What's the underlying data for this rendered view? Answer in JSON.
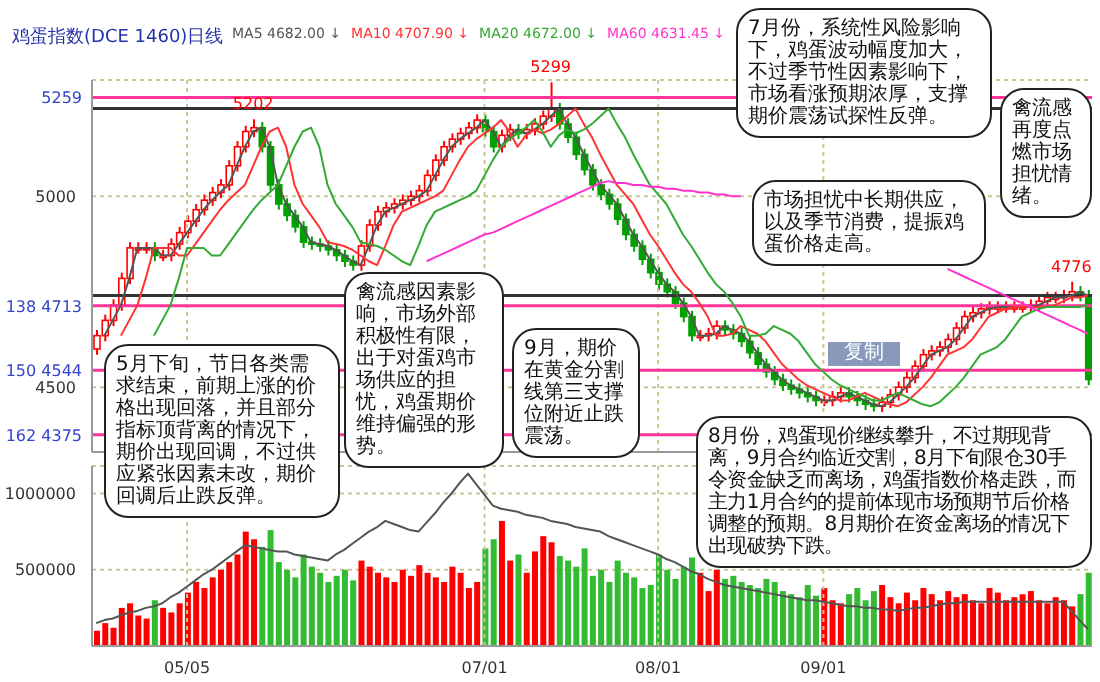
{
  "chart_data": [
    {
      "type": "candlestick",
      "title": "鸡蛋指数(DCE 1460)日线",
      "tick_labels": "y",
      "legend": "top",
      "grid": true,
      "categories": [
        null,
        null,
        null,
        null,
        null,
        null,
        null,
        null,
        null,
        null,
        null,
        null,
        null,
        null,
        null,
        null,
        null,
        null,
        null,
        null,
        null,
        null,
        null,
        null,
        null,
        null,
        null,
        null,
        null,
        null,
        null,
        null,
        null,
        null,
        null,
        null,
        null,
        null,
        null,
        null,
        null,
        null,
        null,
        null,
        null,
        null,
        null,
        null,
        null,
        null,
        null,
        null,
        null,
        null,
        null,
        null,
        null,
        null,
        null,
        null,
        null,
        null,
        null,
        null,
        null,
        null,
        null,
        null,
        null,
        null,
        null,
        null,
        null,
        null,
        null,
        null,
        null,
        null,
        null,
        null,
        null,
        null,
        null,
        null,
        null,
        null,
        null,
        null,
        null,
        null,
        null,
        null,
        null,
        null,
        null,
        null,
        null,
        null,
        null,
        null,
        null,
        null,
        null,
        null,
        null,
        null,
        null,
        null,
        null,
        null,
        null,
        null,
        null,
        null,
        null,
        null,
        null,
        null,
        null,
        null,
        null
      ],
      "ohlc": [
        [
          4600,
          4650,
          4585,
          4635
        ],
        [
          4635,
          4690,
          4620,
          4675
        ],
        [
          4675,
          4730,
          4660,
          4715
        ],
        [
          4715,
          4800,
          4700,
          4785
        ],
        [
          4785,
          4880,
          4770,
          4865
        ],
        [
          4865,
          4880,
          4850,
          4865
        ],
        [
          4865,
          4880,
          4850,
          4865
        ],
        [
          4865,
          4880,
          4830,
          4845
        ],
        [
          4845,
          4860,
          4830,
          4845
        ],
        [
          4845,
          4890,
          4830,
          4875
        ],
        [
          4875,
          4920,
          4860,
          4905
        ],
        [
          4905,
          4950,
          4890,
          4935
        ],
        [
          4935,
          4980,
          4920,
          4965
        ],
        [
          4965,
          5005,
          4950,
          4990
        ],
        [
          4990,
          5025,
          4975,
          5010
        ],
        [
          5010,
          5045,
          4995,
          5030
        ],
        [
          5030,
          5095,
          5015,
          5080
        ],
        [
          5080,
          5145,
          5065,
          5130
        ],
        [
          5130,
          5185,
          5115,
          5170
        ],
        [
          5170,
          5202,
          5155,
          5180
        ],
        [
          5180,
          5195,
          5115,
          5130
        ],
        [
          5130,
          5145,
          5015,
          5030
        ],
        [
          5030,
          5045,
          4965,
          4980
        ],
        [
          4980,
          4995,
          4935,
          4950
        ],
        [
          4950,
          4965,
          4905,
          4920
        ],
        [
          4920,
          4935,
          4865,
          4880
        ],
        [
          4880,
          4895,
          4860,
          4875
        ],
        [
          4875,
          4890,
          4855,
          4870
        ],
        [
          4870,
          4885,
          4845,
          4860
        ],
        [
          4860,
          4875,
          4830,
          4845
        ],
        [
          4845,
          4860,
          4815,
          4830
        ],
        [
          4830,
          4845,
          4805,
          4820
        ],
        [
          4820,
          4885,
          4805,
          4870
        ],
        [
          4870,
          4940,
          4855,
          4925
        ],
        [
          4925,
          4975,
          4910,
          4960
        ],
        [
          4960,
          4985,
          4945,
          4970
        ],
        [
          4970,
          4995,
          4955,
          4980
        ],
        [
          4980,
          5005,
          4965,
          4990
        ],
        [
          4990,
          5015,
          4975,
          5000
        ],
        [
          5000,
          5030,
          4985,
          5015
        ],
        [
          5015,
          5070,
          5000,
          5055
        ],
        [
          5055,
          5110,
          5040,
          5095
        ],
        [
          5095,
          5145,
          5080,
          5130
        ],
        [
          5130,
          5165,
          5115,
          5150
        ],
        [
          5150,
          5180,
          5135,
          5165
        ],
        [
          5165,
          5195,
          5150,
          5180
        ],
        [
          5180,
          5215,
          5165,
          5200
        ],
        [
          5200,
          5215,
          5155,
          5170
        ],
        [
          5170,
          5185,
          5115,
          5130
        ],
        [
          5130,
          5175,
          5115,
          5160
        ],
        [
          5160,
          5190,
          5145,
          5175
        ],
        [
          5175,
          5190,
          5150,
          5165
        ],
        [
          5165,
          5190,
          5150,
          5175
        ],
        [
          5175,
          5205,
          5160,
          5190
        ],
        [
          5190,
          5225,
          5175,
          5210
        ],
        [
          5210,
          5299,
          5195,
          5230
        ],
        [
          5230,
          5245,
          5175,
          5190
        ],
        [
          5190,
          5205,
          5140,
          5155
        ],
        [
          5155,
          5170,
          5095,
          5110
        ],
        [
          5110,
          5125,
          5055,
          5070
        ],
        [
          5070,
          5085,
          5015,
          5030
        ],
        [
          5030,
          5045,
          4990,
          5005
        ],
        [
          5005,
          5020,
          4965,
          4980
        ],
        [
          4980,
          4995,
          4925,
          4940
        ],
        [
          4940,
          4955,
          4885,
          4900
        ],
        [
          4900,
          4915,
          4855,
          4870
        ],
        [
          4870,
          4885,
          4820,
          4835
        ],
        [
          4835,
          4850,
          4785,
          4800
        ],
        [
          4800,
          4815,
          4755,
          4770
        ],
        [
          4770,
          4785,
          4735,
          4750
        ],
        [
          4750,
          4765,
          4705,
          4720
        ],
        [
          4720,
          4735,
          4670,
          4685
        ],
        [
          4685,
          4700,
          4620,
          4635
        ],
        [
          4635,
          4650,
          4620,
          4635
        ],
        [
          4635,
          4655,
          4620,
          4640
        ],
        [
          4640,
          4675,
          4625,
          4660
        ],
        [
          4660,
          4675,
          4635,
          4650
        ],
        [
          4650,
          4665,
          4625,
          4640
        ],
        [
          4640,
          4655,
          4605,
          4620
        ],
        [
          4620,
          4635,
          4575,
          4590
        ],
        [
          4590,
          4605,
          4545,
          4560
        ],
        [
          4560,
          4575,
          4525,
          4540
        ],
        [
          4540,
          4555,
          4505,
          4520
        ],
        [
          4520,
          4535,
          4490,
          4505
        ],
        [
          4505,
          4520,
          4480,
          4495
        ],
        [
          4495,
          4510,
          4470,
          4485
        ],
        [
          4485,
          4500,
          4460,
          4475
        ],
        [
          4475,
          4490,
          4450,
          4465
        ],
        [
          4465,
          4480,
          4450,
          4465
        ],
        [
          4465,
          4490,
          4450,
          4475
        ],
        [
          4475,
          4500,
          4460,
          4485
        ],
        [
          4485,
          4500,
          4460,
          4475
        ],
        [
          4475,
          4490,
          4450,
          4465
        ],
        [
          4465,
          4480,
          4440,
          4455
        ],
        [
          4455,
          4470,
          4436,
          4450
        ],
        [
          4450,
          4475,
          4435,
          4460
        ],
        [
          4460,
          4495,
          4445,
          4480
        ],
        [
          4480,
          4515,
          4465,
          4500
        ],
        [
          4500,
          4540,
          4485,
          4525
        ],
        [
          4525,
          4570,
          4510,
          4555
        ],
        [
          4555,
          4600,
          4540,
          4585
        ],
        [
          4585,
          4610,
          4570,
          4595
        ],
        [
          4595,
          4620,
          4580,
          4605
        ],
        [
          4605,
          4640,
          4590,
          4625
        ],
        [
          4625,
          4670,
          4610,
          4655
        ],
        [
          4655,
          4700,
          4640,
          4685
        ],
        [
          4685,
          4710,
          4670,
          4695
        ],
        [
          4695,
          4720,
          4680,
          4705
        ],
        [
          4705,
          4725,
          4690,
          4710
        ],
        [
          4710,
          4725,
          4695,
          4710
        ],
        [
          4710,
          4725,
          4695,
          4710
        ],
        [
          4710,
          4725,
          4695,
          4710
        ],
        [
          4710,
          4725,
          4695,
          4710
        ],
        [
          4710,
          4730,
          4695,
          4715
        ],
        [
          4715,
          4740,
          4700,
          4725
        ],
        [
          4725,
          4750,
          4710,
          4735
        ],
        [
          4735,
          4750,
          4720,
          4735
        ],
        [
          4735,
          4755,
          4720,
          4740
        ],
        [
          4740,
          4776,
          4725,
          4750
        ],
        [
          4750,
          4765,
          4725,
          4740
        ],
        [
          4740,
          4755,
          4505,
          4520
        ]
      ],
      "series": [
        {
          "name": "MA5 4682.00 ↓",
          "type": "line",
          "color": "#555555",
          "values": [
            null,
            4635,
            4675,
            4715,
            4785,
            4865,
            4865,
            4865,
            4845,
            4845,
            4875,
            4905,
            4935,
            4965,
            4990,
            5010,
            5030,
            5080,
            5130,
            5170,
            5180,
            5130,
            5030,
            4980,
            4950,
            4920,
            4880,
            4875,
            4870,
            4860,
            4845,
            4830,
            4820,
            4870,
            4925,
            4960,
            4970,
            4980,
            4990,
            5000,
            5015,
            5055,
            5095,
            5130,
            5150,
            5165,
            5180,
            5200,
            5170,
            5130,
            5160,
            5175,
            5165,
            5175,
            5190,
            5210,
            5230,
            5190,
            5155,
            5110,
            5070,
            5030,
            5005,
            4980,
            4940,
            4900,
            4870,
            4835,
            4800,
            4770,
            4750,
            4720,
            4685,
            4635,
            4635,
            4640,
            4660,
            4650,
            4640,
            4620,
            4590,
            4560,
            4540,
            4520,
            4505,
            4495,
            4485,
            4475,
            4465,
            4465,
            4475,
            4485,
            4475,
            4465,
            4455,
            4450,
            4460,
            4480,
            4500,
            4525,
            4555,
            4585,
            4595,
            4605,
            4625,
            4655,
            4685,
            4695,
            4705,
            4710,
            4710,
            4710,
            4710,
            4710,
            4715,
            4725,
            4735,
            4735,
            4740,
            4750,
            4740
          ]
        },
        {
          "name": "MA10 4707.90 ↓",
          "type": "line",
          "color": "#ff3333",
          "values": [
            null,
            null,
            null,
            4635,
            4675,
            4715,
            4785,
            4865,
            4865,
            4865,
            4845,
            4845,
            4875,
            4905,
            4935,
            4965,
            4990,
            5010,
            5030,
            5080,
            5130,
            5170,
            5180,
            5130,
            5030,
            4980,
            4950,
            4920,
            4880,
            4875,
            4870,
            4860,
            4845,
            4830,
            4820,
            4870,
            4925,
            4960,
            4970,
            4980,
            4990,
            5000,
            5015,
            5055,
            5095,
            5130,
            5150,
            5165,
            5180,
            5200,
            5170,
            5130,
            5160,
            5175,
            5165,
            5175,
            5190,
            5210,
            5230,
            5190,
            5155,
            5110,
            5070,
            5030,
            5005,
            4980,
            4940,
            4900,
            4870,
            4835,
            4800,
            4770,
            4750,
            4720,
            4685,
            4635,
            4635,
            4640,
            4660,
            4650,
            4640,
            4620,
            4590,
            4560,
            4540,
            4520,
            4505,
            4495,
            4485,
            4475,
            4465,
            4465,
            4475,
            4485,
            4475,
            4465,
            4455,
            4450,
            4460,
            4480,
            4500,
            4525,
            4555,
            4585,
            4595,
            4605,
            4625,
            4655,
            4685,
            4695,
            4705,
            4710,
            4710,
            4710,
            4710,
            4710,
            4715,
            4725,
            4735,
            4735,
            4740
          ]
        },
        {
          "name": "MA20 4672.00 ↓",
          "type": "line",
          "color": "#33aa33",
          "values": [
            null,
            null,
            null,
            null,
            null,
            null,
            null,
            4635,
            4675,
            4715,
            4785,
            4865,
            4865,
            4865,
            4845,
            4845,
            4875,
            4905,
            4935,
            4965,
            4990,
            5010,
            5030,
            5080,
            5130,
            5170,
            5180,
            5130,
            5030,
            4980,
            4950,
            4920,
            4880,
            4875,
            4870,
            4860,
            4845,
            4830,
            4820,
            4870,
            4925,
            4960,
            4970,
            4980,
            4990,
            5000,
            5015,
            5055,
            5095,
            5130,
            5150,
            5165,
            5180,
            5200,
            5170,
            5130,
            5160,
            5175,
            5165,
            5175,
            5190,
            5210,
            5230,
            5190,
            5155,
            5110,
            5070,
            5030,
            5005,
            4980,
            4940,
            4900,
            4870,
            4835,
            4800,
            4770,
            4750,
            4720,
            4685,
            4635,
            4635,
            4640,
            4660,
            4650,
            4640,
            4620,
            4590,
            4560,
            4540,
            4520,
            4505,
            4495,
            4485,
            4475,
            4465,
            4465,
            4475,
            4485,
            4475,
            4465,
            4455,
            4450,
            4460,
            4480,
            4500,
            4525,
            4555,
            4585,
            4595,
            4605,
            4625,
            4655,
            4685,
            4695,
            4705,
            4710,
            4710,
            4710,
            4710,
            4710,
            4715
          ]
        },
        {
          "name": "MA60 4631.45 ↓",
          "type": "line",
          "color": "#ff33cc",
          "values": [
            null,
            null,
            null,
            null,
            null,
            null,
            null,
            null,
            null,
            null,
            null,
            null,
            null,
            null,
            null,
            null,
            null,
            null,
            null,
            null,
            null,
            null,
            null,
            null,
            null,
            null,
            null,
            null,
            null,
            null,
            null,
            null,
            null,
            null,
            null,
            null,
            null,
            null,
            null,
            null,
            4830,
            4840,
            4850,
            4860,
            4870,
            4880,
            4890,
            4900,
            4905,
            4915,
            4925,
            4935,
            4945,
            4955,
            4965,
            4975,
            4985,
            4995,
            5005,
            5015,
            5025,
            5035,
            5040,
            5035,
            5035,
            5030,
            5030,
            5025,
            5025,
            5020,
            5020,
            5015,
            5015,
            5010,
            5010,
            5005,
            5005,
            5000,
            5000,
            null,
            null,
            null,
            null,
            null,
            null,
            null,
            null,
            null,
            null,
            null,
            null,
            null,
            null,
            null,
            null,
            null,
            null,
            null,
            null,
            null,
            null,
            null,
            null,
            4810,
            4800,
            4790,
            4780,
            4770,
            4760,
            4750,
            4740,
            4730,
            4720,
            4710,
            4700,
            4690,
            4680,
            4670,
            4660,
            4650,
            4640
          ]
        }
      ],
      "ylim": [
        4330,
        5305
      ],
      "yticks": [
        5000,
        4500
      ],
      "ref_lines": [
        {
          "axis": "y",
          "value": 5259,
          "label": "5259",
          "color": "#ff3399"
        },
        {
          "axis": "y",
          "value": 5230,
          "label": null,
          "color": "#333333"
        },
        {
          "axis": "y",
          "value": 4740,
          "label": null,
          "color": "#333333"
        },
        {
          "axis": "y",
          "value": 4713,
          "label": "138 4713",
          "color": "#ff3399"
        },
        {
          "axis": "y",
          "value": 4544,
          "label": "150 4544",
          "color": "#ff3399"
        },
        {
          "axis": "y",
          "value": 4375,
          "label": "162 4375",
          "color": "#ff3399"
        }
      ],
      "annotations": [
        "5月下旬，节日各类需求结束，前期上涨的价格出现回落，并且部分指标顶背离的情况下，期价出现回调，不过供应紧张因素未改，期价回调后止跌反弹。",
        "禽流感因素影响，市场外部积极性有限，出于对蛋鸡市场供应的担忧，鸡蛋期价维持偏强的形势。",
        "8月份，鸡蛋现价继续攀升，不过期现背离，9月合约临近交割，8月下旬限仓30手令资金缺乏而离场，鸡蛋指数价格走跌，而主力1月合约的提前体现市场预期节后价格调整的预期。8月期价在资金离场的情况下出现破势下跌。",
        "7月份，系统性风险影响下，鸡蛋波动幅度加大，不过季节性因素影响下，市场看涨预期浓厚，支撑期价震荡试探性反弹。",
        "市场担忧中长期供应，以及季节消费，提振鸡蛋价格走高。",
        "禽流感再度点燃市场担忧情绪。",
        "9月，期价在黄金分割线第三支撑位附近止跌震荡。",
        "复制",
        {
          "text": "5202",
          "y": 5202
        },
        {
          "text": "5299",
          "y": 5299
        },
        {
          "text": "4776",
          "y": 4776
        }
      ]
    },
    {
      "type": "bar",
      "grid": true,
      "legend": false,
      "categories": [
        null,
        null,
        null,
        null,
        null,
        null,
        null,
        null,
        null,
        null,
        null,
        "05/05",
        null,
        null,
        null,
        null,
        null,
        null,
        null,
        null,
        null,
        null,
        null,
        null,
        null,
        null,
        null,
        null,
        null,
        null,
        null,
        null,
        null,
        null,
        null,
        null,
        null,
        null,
        null,
        null,
        null,
        null,
        null,
        null,
        null,
        null,
        null,
        "07/01",
        null,
        null,
        null,
        null,
        null,
        null,
        null,
        null,
        null,
        null,
        null,
        null,
        null,
        null,
        null,
        null,
        null,
        null,
        null,
        null,
        "08/01",
        null,
        null,
        null,
        null,
        null,
        null,
        null,
        null,
        null,
        null,
        null,
        null,
        null,
        null,
        null,
        null,
        null,
        null,
        null,
        "09/01",
        null,
        null,
        null,
        null,
        null,
        null,
        null,
        null,
        null,
        null,
        null,
        null,
        null,
        null,
        null,
        null,
        null,
        null,
        null,
        null,
        null,
        null,
        null,
        null,
        null,
        null,
        null,
        null,
        null,
        null,
        null,
        null
      ],
      "series": [
        {
          "type": "bar",
          "values": [
            100000,
            150000,
            120000,
            250000,
            280000,
            200000,
            180000,
            300000,
            250000,
            220000,
            280000,
            350000,
            420000,
            380000,
            450000,
            500000,
            550000,
            600000,
            750000,
            700000,
            650000,
            760000,
            550000,
            500000,
            450000,
            600000,
            520000,
            480000,
            420000,
            460000,
            500000,
            430000,
            560000,
            520000,
            480000,
            450000,
            420000,
            500000,
            460000,
            530000,
            480000,
            450000,
            420000,
            520000,
            480000,
            380000,
            420000,
            640000,
            700000,
            820000,
            560000,
            600000,
            480000,
            620000,
            720000,
            680000,
            590000,
            560000,
            520000,
            640000,
            460000,
            500000,
            420000,
            560000,
            480000,
            450000,
            380000,
            400000,
            600000,
            500000,
            440000,
            520000,
            580000,
            480000,
            360000,
            500000,
            440000,
            460000,
            420000,
            400000,
            380000,
            440000,
            420000,
            360000,
            340000,
            320000,
            400000,
            330000,
            380000,
            300000,
            280000,
            340000,
            380000,
            300000,
            360000,
            400000,
            320000,
            280000,
            350000,
            300000,
            380000,
            340000,
            300000,
            360000,
            320000,
            340000,
            300000,
            280000,
            380000,
            350000,
            300000,
            320000,
            340000,
            360000,
            300000,
            280000,
            320000,
            300000,
            260000,
            340000,
            480000
          ],
          "colors": [
            "#ff0000",
            "#ff0000",
            "#ff0000",
            "#ff0000",
            "#ff0000",
            "#ff0000",
            "#ff0000",
            "#33bb33",
            "#ff0000",
            "#ff0000",
            "#ff0000",
            "#ff0000",
            "#ff0000",
            "#ff0000",
            "#ff0000",
            "#ff0000",
            "#ff0000",
            "#ff0000",
            "#ff0000",
            "#ff0000",
            "#33bb33",
            "#33bb33",
            "#33bb33",
            "#33bb33",
            "#33bb33",
            "#33bb33",
            "#33bb33",
            "#33bb33",
            "#33bb33",
            "#33bb33",
            "#33bb33",
            "#33bb33",
            "#ff0000",
            "#ff0000",
            "#ff0000",
            "#ff0000",
            "#ff0000",
            "#ff0000",
            "#ff0000",
            "#ff0000",
            "#ff0000",
            "#ff0000",
            "#ff0000",
            "#ff0000",
            "#ff0000",
            "#ff0000",
            "#ff0000",
            "#33bb33",
            "#33bb33",
            "#ff0000",
            "#ff0000",
            "#33bb33",
            "#ff0000",
            "#ff0000",
            "#ff0000",
            "#ff0000",
            "#33bb33",
            "#33bb33",
            "#33bb33",
            "#33bb33",
            "#33bb33",
            "#33bb33",
            "#33bb33",
            "#33bb33",
            "#33bb33",
            "#33bb33",
            "#33bb33",
            "#33bb33",
            "#33bb33",
            "#33bb33",
            "#33bb33",
            "#33bb33",
            "#33bb33",
            "#ff0000",
            "#ff0000",
            "#ff0000",
            "#33bb33",
            "#33bb33",
            "#33bb33",
            "#33bb33",
            "#33bb33",
            "#33bb33",
            "#33bb33",
            "#33bb33",
            "#33bb33",
            "#33bb33",
            "#33bb33",
            "#33bb33",
            "#ff0000",
            "#ff0000",
            "#ff0000",
            "#33bb33",
            "#33bb33",
            "#33bb33",
            "#33bb33",
            "#ff0000",
            "#ff0000",
            "#ff0000",
            "#ff0000",
            "#ff0000",
            "#ff0000",
            "#ff0000",
            "#ff0000",
            "#ff0000",
            "#ff0000",
            "#ff0000",
            "#ff0000",
            "#ff0000",
            "#ff0000",
            "#ff0000",
            "#ff0000",
            "#ff0000",
            "#ff0000",
            "#ff0000",
            "#ff0000",
            "#ff0000",
            "#ff0000",
            "#ff0000",
            "#ff0000",
            "#33bb33",
            "#33bb33"
          ]
        },
        {
          "type": "line",
          "color": "#555555",
          "values": [
            150000,
            170000,
            180000,
            200000,
            220000,
            230000,
            250000,
            260000,
            280000,
            320000,
            350000,
            390000,
            430000,
            470000,
            500000,
            540000,
            580000,
            620000,
            660000,
            650000,
            640000,
            630000,
            620000,
            620000,
            600000,
            590000,
            580000,
            570000,
            560000,
            600000,
            630000,
            670000,
            710000,
            750000,
            780000,
            820000,
            800000,
            780000,
            760000,
            750000,
            810000,
            870000,
            940000,
            1000000,
            1070000,
            1130000,
            1060000,
            990000,
            920000,
            900000,
            890000,
            880000,
            860000,
            850000,
            840000,
            820000,
            810000,
            800000,
            780000,
            770000,
            760000,
            750000,
            720000,
            700000,
            680000,
            660000,
            640000,
            620000,
            600000,
            570000,
            550000,
            520000,
            490000,
            470000,
            440000,
            420000,
            400000,
            390000,
            380000,
            370000,
            360000,
            350000,
            340000,
            330000,
            320000,
            310000,
            300000,
            300000,
            290000,
            280000,
            270000,
            260000,
            260000,
            250000,
            250000,
            240000,
            240000,
            230000,
            240000,
            250000,
            250000,
            260000,
            270000,
            280000,
            280000,
            290000,
            290000,
            290000,
            290000,
            290000,
            290000,
            290000,
            290000,
            290000,
            290000,
            290000,
            290000,
            290000,
            230000,
            170000,
            110000
          ]
        }
      ],
      "ylim": [
        0,
        1180000
      ],
      "yticks": [
        500000,
        1000000
      ]
    }
  ]
}
